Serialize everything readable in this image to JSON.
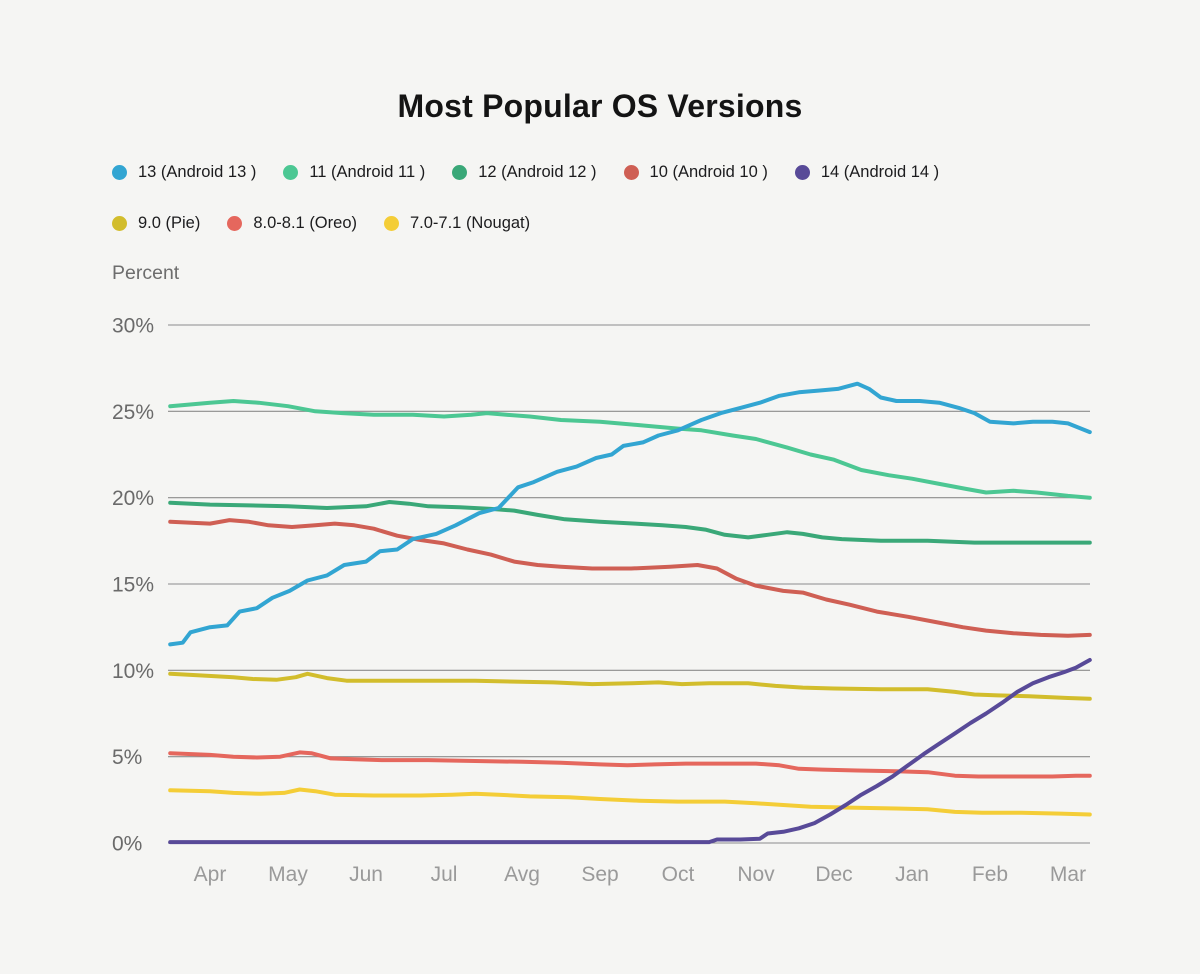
{
  "title": "Most Popular OS Versions",
  "y_axis": {
    "label": "Percent",
    "tick_labels": [
      "0%",
      "5%",
      "10%",
      "15%",
      "20%",
      "25%",
      "30%"
    ],
    "min": 0,
    "max": 30,
    "grid": true
  },
  "x_axis": {
    "tick_labels": [
      "Apr",
      "May",
      "Jun",
      "Jul",
      "Avg",
      "Sep",
      "Oct",
      "Nov",
      "Dec",
      "Jan",
      "Feb",
      "Mar"
    ]
  },
  "legend": {
    "position": "top-left, two rows",
    "rows": [
      [
        "13",
        "11",
        "12",
        "10",
        "14"
      ],
      [
        "9.0",
        "8.0-8.1",
        "7.0-7.1"
      ]
    ]
  },
  "colors": {
    "background": "#f5f5f3",
    "gridline": "#8c8c8c",
    "title_text": "#141414",
    "legend_text": "#1c1c1e",
    "y_tick_text": "#6a6a6a",
    "x_tick_text": "#9a9a9a"
  },
  "chart_data": {
    "type": "line",
    "title": "Most Popular OS Versions",
    "xlabel": "",
    "ylabel": "Percent",
    "ylim": [
      0,
      30
    ],
    "x_unit": "months (0 = Apr ... 11 = Mar, fractional values = intra-month samples)",
    "draw_order": [
      "11",
      "12",
      "10",
      "9.0",
      "8.0-8.1",
      "7.0-7.1",
      "13",
      "14"
    ],
    "series": [
      {
        "id": "13",
        "label": "13 (Android 13 )",
        "color": "#32a5d2",
        "points": [
          [
            -0.51,
            11.5
          ],
          [
            -0.35,
            11.6
          ],
          [
            -0.25,
            12.2
          ],
          [
            0,
            12.5
          ],
          [
            0.22,
            12.6
          ],
          [
            0.38,
            13.4
          ],
          [
            0.6,
            13.6
          ],
          [
            0.8,
            14.2
          ],
          [
            1.02,
            14.6
          ],
          [
            1.25,
            15.2
          ],
          [
            1.5,
            15.5
          ],
          [
            1.72,
            16.1
          ],
          [
            2.0,
            16.3
          ],
          [
            2.18,
            16.9
          ],
          [
            2.4,
            17.0
          ],
          [
            2.6,
            17.6
          ],
          [
            2.9,
            17.9
          ],
          [
            3.15,
            18.4
          ],
          [
            3.45,
            19.1
          ],
          [
            3.7,
            19.4
          ],
          [
            3.95,
            20.6
          ],
          [
            4.15,
            20.9
          ],
          [
            4.45,
            21.5
          ],
          [
            4.7,
            21.8
          ],
          [
            4.95,
            22.3
          ],
          [
            5.15,
            22.5
          ],
          [
            5.3,
            23.0
          ],
          [
            5.55,
            23.2
          ],
          [
            5.75,
            23.6
          ],
          [
            6.0,
            23.9
          ],
          [
            6.3,
            24.5
          ],
          [
            6.55,
            24.9
          ],
          [
            6.8,
            25.2
          ],
          [
            7.05,
            25.5
          ],
          [
            7.3,
            25.9
          ],
          [
            7.55,
            26.1
          ],
          [
            7.8,
            26.2
          ],
          [
            8.05,
            26.3
          ],
          [
            8.3,
            26.6
          ],
          [
            8.45,
            26.3
          ],
          [
            8.6,
            25.8
          ],
          [
            8.8,
            25.6
          ],
          [
            9.1,
            25.6
          ],
          [
            9.35,
            25.5
          ],
          [
            9.6,
            25.2
          ],
          [
            9.8,
            24.9
          ],
          [
            10.0,
            24.4
          ],
          [
            10.3,
            24.3
          ],
          [
            10.55,
            24.4
          ],
          [
            10.8,
            24.4
          ],
          [
            11.0,
            24.3
          ],
          [
            11.28,
            23.8
          ]
        ]
      },
      {
        "id": "11",
        "label": "11 (Android 11 )",
        "color": "#4cc793",
        "points": [
          [
            -0.51,
            25.3
          ],
          [
            0,
            25.5
          ],
          [
            0.3,
            25.6
          ],
          [
            0.62,
            25.5
          ],
          [
            1.0,
            25.3
          ],
          [
            1.35,
            25.0
          ],
          [
            1.7,
            24.9
          ],
          [
            2.1,
            24.8
          ],
          [
            2.6,
            24.8
          ],
          [
            3.0,
            24.7
          ],
          [
            3.35,
            24.8
          ],
          [
            3.55,
            24.9
          ],
          [
            3.8,
            24.8
          ],
          [
            4.1,
            24.7
          ],
          [
            4.5,
            24.5
          ],
          [
            5.0,
            24.4
          ],
          [
            5.5,
            24.2
          ],
          [
            6.0,
            24.0
          ],
          [
            6.3,
            23.9
          ],
          [
            6.7,
            23.6
          ],
          [
            7.0,
            23.4
          ],
          [
            7.4,
            22.9
          ],
          [
            7.7,
            22.5
          ],
          [
            8.0,
            22.2
          ],
          [
            8.35,
            21.6
          ],
          [
            8.7,
            21.3
          ],
          [
            9.0,
            21.1
          ],
          [
            9.35,
            20.8
          ],
          [
            9.7,
            20.5
          ],
          [
            9.95,
            20.3
          ],
          [
            10.3,
            20.4
          ],
          [
            10.6,
            20.3
          ],
          [
            11.0,
            20.1
          ],
          [
            11.28,
            20.0
          ]
        ]
      },
      {
        "id": "12",
        "label": "12 (Android 12 )",
        "color": "#3aa878",
        "points": [
          [
            -0.51,
            19.7
          ],
          [
            0,
            19.6
          ],
          [
            0.5,
            19.55
          ],
          [
            1.0,
            19.5
          ],
          [
            1.5,
            19.4
          ],
          [
            2.0,
            19.5
          ],
          [
            2.3,
            19.75
          ],
          [
            2.55,
            19.65
          ],
          [
            2.8,
            19.5
          ],
          [
            3.2,
            19.45
          ],
          [
            3.6,
            19.35
          ],
          [
            3.9,
            19.25
          ],
          [
            4.2,
            19.0
          ],
          [
            4.55,
            18.75
          ],
          [
            5.0,
            18.6
          ],
          [
            5.45,
            18.5
          ],
          [
            5.8,
            18.4
          ],
          [
            6.1,
            18.3
          ],
          [
            6.35,
            18.15
          ],
          [
            6.6,
            17.85
          ],
          [
            6.9,
            17.7
          ],
          [
            7.15,
            17.85
          ],
          [
            7.4,
            18.0
          ],
          [
            7.6,
            17.9
          ],
          [
            7.85,
            17.7
          ],
          [
            8.1,
            17.6
          ],
          [
            8.6,
            17.5
          ],
          [
            9.2,
            17.5
          ],
          [
            9.8,
            17.4
          ],
          [
            10.4,
            17.4
          ],
          [
            11.0,
            17.4
          ],
          [
            11.28,
            17.4
          ]
        ]
      },
      {
        "id": "10",
        "label": "10 (Android 10 )",
        "color": "#cf5f54",
        "points": [
          [
            -0.51,
            18.6
          ],
          [
            0,
            18.5
          ],
          [
            0.25,
            18.7
          ],
          [
            0.5,
            18.6
          ],
          [
            0.75,
            18.4
          ],
          [
            1.05,
            18.3
          ],
          [
            1.35,
            18.4
          ],
          [
            1.6,
            18.5
          ],
          [
            1.85,
            18.4
          ],
          [
            2.1,
            18.2
          ],
          [
            2.4,
            17.8
          ],
          [
            2.7,
            17.55
          ],
          [
            3.0,
            17.35
          ],
          [
            3.3,
            17.0
          ],
          [
            3.6,
            16.7
          ],
          [
            3.9,
            16.3
          ],
          [
            4.2,
            16.1
          ],
          [
            4.5,
            16.0
          ],
          [
            4.9,
            15.9
          ],
          [
            5.4,
            15.9
          ],
          [
            5.9,
            16.0
          ],
          [
            6.25,
            16.1
          ],
          [
            6.5,
            15.9
          ],
          [
            6.75,
            15.3
          ],
          [
            7.0,
            14.9
          ],
          [
            7.35,
            14.6
          ],
          [
            7.6,
            14.5
          ],
          [
            7.9,
            14.1
          ],
          [
            8.2,
            13.8
          ],
          [
            8.55,
            13.4
          ],
          [
            8.95,
            13.1
          ],
          [
            9.3,
            12.8
          ],
          [
            9.65,
            12.5
          ],
          [
            9.95,
            12.3
          ],
          [
            10.3,
            12.15
          ],
          [
            10.65,
            12.05
          ],
          [
            11.0,
            12.0
          ],
          [
            11.28,
            12.05
          ]
        ]
      },
      {
        "id": "14",
        "label": "14 (Android 14 )",
        "color": "#584a98",
        "points": [
          [
            -0.51,
            0.05
          ],
          [
            1,
            0.05
          ],
          [
            2,
            0.05
          ],
          [
            3,
            0.05
          ],
          [
            4,
            0.05
          ],
          [
            5,
            0.05
          ],
          [
            6,
            0.05
          ],
          [
            6.4,
            0.05
          ],
          [
            6.5,
            0.2
          ],
          [
            6.8,
            0.2
          ],
          [
            7.05,
            0.25
          ],
          [
            7.15,
            0.55
          ],
          [
            7.35,
            0.65
          ],
          [
            7.55,
            0.85
          ],
          [
            7.75,
            1.15
          ],
          [
            7.95,
            1.65
          ],
          [
            8.15,
            2.2
          ],
          [
            8.35,
            2.8
          ],
          [
            8.55,
            3.3
          ],
          [
            8.75,
            3.85
          ],
          [
            8.95,
            4.5
          ],
          [
            9.15,
            5.15
          ],
          [
            9.35,
            5.75
          ],
          [
            9.55,
            6.35
          ],
          [
            9.75,
            6.95
          ],
          [
            9.95,
            7.5
          ],
          [
            10.15,
            8.1
          ],
          [
            10.35,
            8.75
          ],
          [
            10.55,
            9.25
          ],
          [
            10.75,
            9.6
          ],
          [
            10.95,
            9.9
          ],
          [
            11.1,
            10.15
          ],
          [
            11.28,
            10.6
          ]
        ]
      },
      {
        "id": "9.0",
        "label": "9.0 (Pie)",
        "color": "#d2bd2c",
        "points": [
          [
            -0.51,
            9.8
          ],
          [
            -0.1,
            9.7
          ],
          [
            0.3,
            9.6
          ],
          [
            0.55,
            9.5
          ],
          [
            0.85,
            9.45
          ],
          [
            1.1,
            9.6
          ],
          [
            1.25,
            9.8
          ],
          [
            1.5,
            9.55
          ],
          [
            1.75,
            9.4
          ],
          [
            2.2,
            9.4
          ],
          [
            2.8,
            9.4
          ],
          [
            3.4,
            9.4
          ],
          [
            3.9,
            9.35
          ],
          [
            4.4,
            9.3
          ],
          [
            4.9,
            9.2
          ],
          [
            5.4,
            9.25
          ],
          [
            5.75,
            9.3
          ],
          [
            6.05,
            9.2
          ],
          [
            6.4,
            9.25
          ],
          [
            6.9,
            9.25
          ],
          [
            7.25,
            9.1
          ],
          [
            7.6,
            9.0
          ],
          [
            8.0,
            8.95
          ],
          [
            8.6,
            8.9
          ],
          [
            9.2,
            8.9
          ],
          [
            9.55,
            8.75
          ],
          [
            9.8,
            8.6
          ],
          [
            10.1,
            8.55
          ],
          [
            10.5,
            8.5
          ],
          [
            11.0,
            8.4
          ],
          [
            11.28,
            8.35
          ]
        ]
      },
      {
        "id": "8.0-8.1",
        "label": "8.0-8.1 (Oreo)",
        "color": "#e5675d",
        "points": [
          [
            -0.51,
            5.2
          ],
          [
            0,
            5.1
          ],
          [
            0.3,
            5.0
          ],
          [
            0.6,
            4.95
          ],
          [
            0.9,
            5.0
          ],
          [
            1.15,
            5.25
          ],
          [
            1.3,
            5.2
          ],
          [
            1.55,
            4.9
          ],
          [
            1.85,
            4.85
          ],
          [
            2.2,
            4.8
          ],
          [
            2.8,
            4.8
          ],
          [
            3.4,
            4.75
          ],
          [
            4.0,
            4.7
          ],
          [
            4.5,
            4.65
          ],
          [
            5.0,
            4.55
          ],
          [
            5.35,
            4.5
          ],
          [
            5.7,
            4.55
          ],
          [
            6.1,
            4.6
          ],
          [
            6.6,
            4.6
          ],
          [
            7.0,
            4.6
          ],
          [
            7.3,
            4.5
          ],
          [
            7.55,
            4.3
          ],
          [
            7.85,
            4.25
          ],
          [
            8.3,
            4.2
          ],
          [
            8.8,
            4.15
          ],
          [
            9.2,
            4.1
          ],
          [
            9.55,
            3.9
          ],
          [
            9.85,
            3.85
          ],
          [
            10.3,
            3.85
          ],
          [
            10.8,
            3.85
          ],
          [
            11.1,
            3.9
          ],
          [
            11.28,
            3.9
          ]
        ]
      },
      {
        "id": "7.0-7.1",
        "label": "7.0-7.1 (Nougat)",
        "color": "#f4cd37",
        "points": [
          [
            -0.51,
            3.05
          ],
          [
            0,
            3.0
          ],
          [
            0.3,
            2.9
          ],
          [
            0.65,
            2.85
          ],
          [
            0.95,
            2.9
          ],
          [
            1.15,
            3.1
          ],
          [
            1.35,
            3.0
          ],
          [
            1.6,
            2.8
          ],
          [
            2.1,
            2.75
          ],
          [
            2.7,
            2.75
          ],
          [
            3.1,
            2.8
          ],
          [
            3.4,
            2.85
          ],
          [
            3.7,
            2.8
          ],
          [
            4.1,
            2.7
          ],
          [
            4.6,
            2.65
          ],
          [
            5.0,
            2.55
          ],
          [
            5.5,
            2.45
          ],
          [
            6.0,
            2.4
          ],
          [
            6.6,
            2.4
          ],
          [
            7.0,
            2.3
          ],
          [
            7.35,
            2.2
          ],
          [
            7.7,
            2.1
          ],
          [
            8.2,
            2.05
          ],
          [
            8.8,
            2.0
          ],
          [
            9.2,
            1.95
          ],
          [
            9.55,
            1.8
          ],
          [
            9.9,
            1.75
          ],
          [
            10.4,
            1.75
          ],
          [
            10.9,
            1.7
          ],
          [
            11.28,
            1.65
          ]
        ]
      }
    ]
  }
}
